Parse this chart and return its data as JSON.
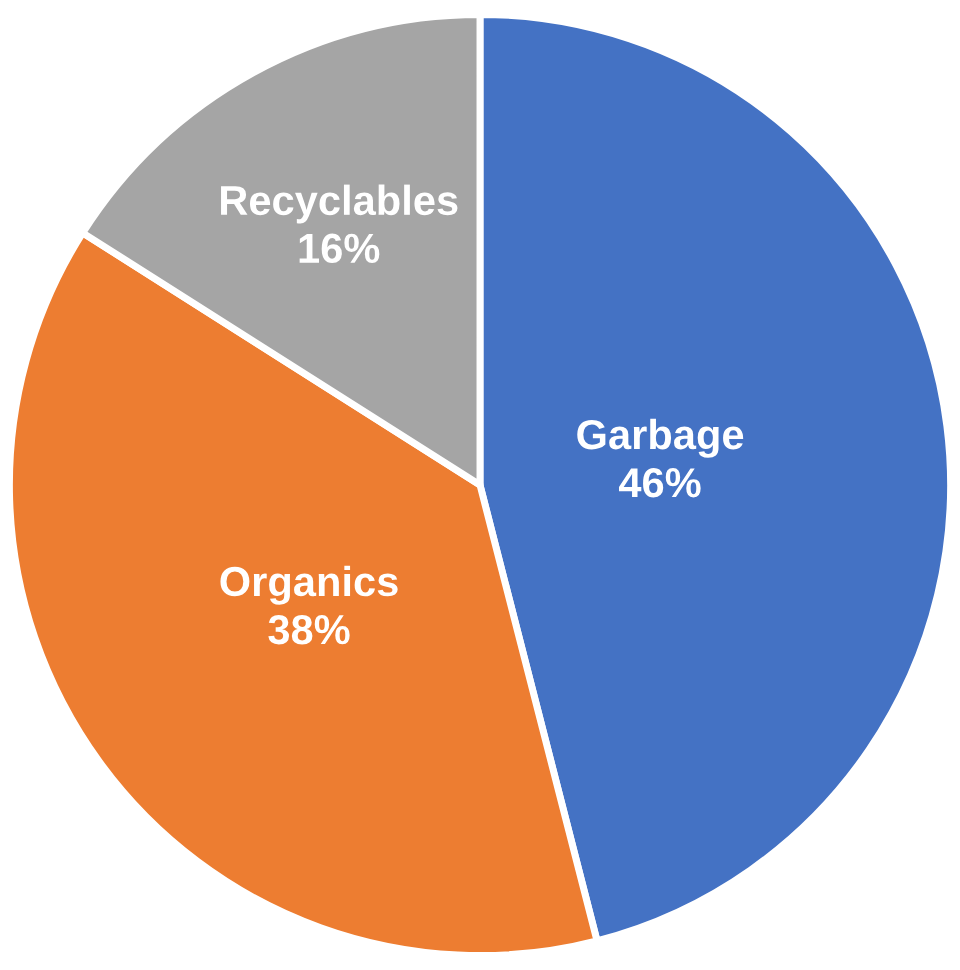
{
  "chart_data": {
    "type": "pie",
    "categories": [
      "Garbage",
      "Organics",
      "Recyclables"
    ],
    "values": [
      46,
      38,
      16
    ],
    "value_labels": [
      "46%",
      "38%",
      "16%"
    ],
    "colors": [
      "#4472c4",
      "#ed7d31",
      "#a5a5a5"
    ],
    "legend": false
  }
}
